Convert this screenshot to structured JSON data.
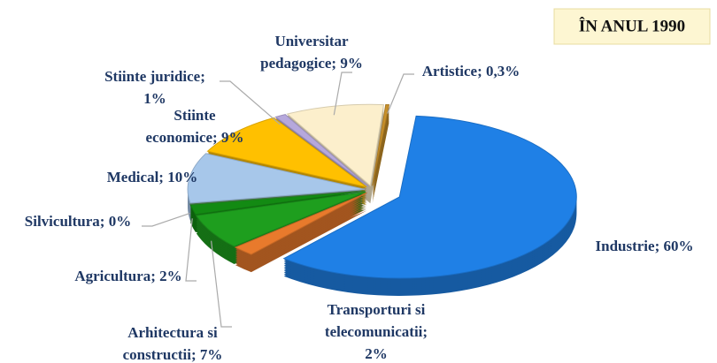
{
  "chart_data": {
    "type": "pie",
    "title": "ÎN ANUL 1990",
    "values": [
      60,
      2,
      7,
      2,
      0,
      10,
      9,
      1,
      9,
      0.3
    ],
    "value_labels": [
      [
        "Industrie; 60%"
      ],
      [
        "Transporturi si",
        "telecomunicatii;",
        "2%"
      ],
      [
        "Arhitectura si",
        "constructii; 7%"
      ],
      [
        "Agricultura; 2%"
      ],
      [
        "Silvicultura; 0%"
      ],
      [
        "Medical; 10%"
      ],
      [
        "Stiinte",
        "economice; 9%"
      ],
      [
        "Stiinte juridice;",
        "1%"
      ],
      [
        "Universitar",
        "pedagogice; 9%"
      ],
      [
        "Artistice; 0,3%"
      ]
    ],
    "colors": [
      "#1f80e6",
      "#e87a2c",
      "#1e9e1e",
      "#138a13",
      "#4a8a4a",
      "#a7c7ea",
      "#ffc000",
      "#b6a8dc",
      "#fcefcc",
      "#c8902a"
    ]
  }
}
